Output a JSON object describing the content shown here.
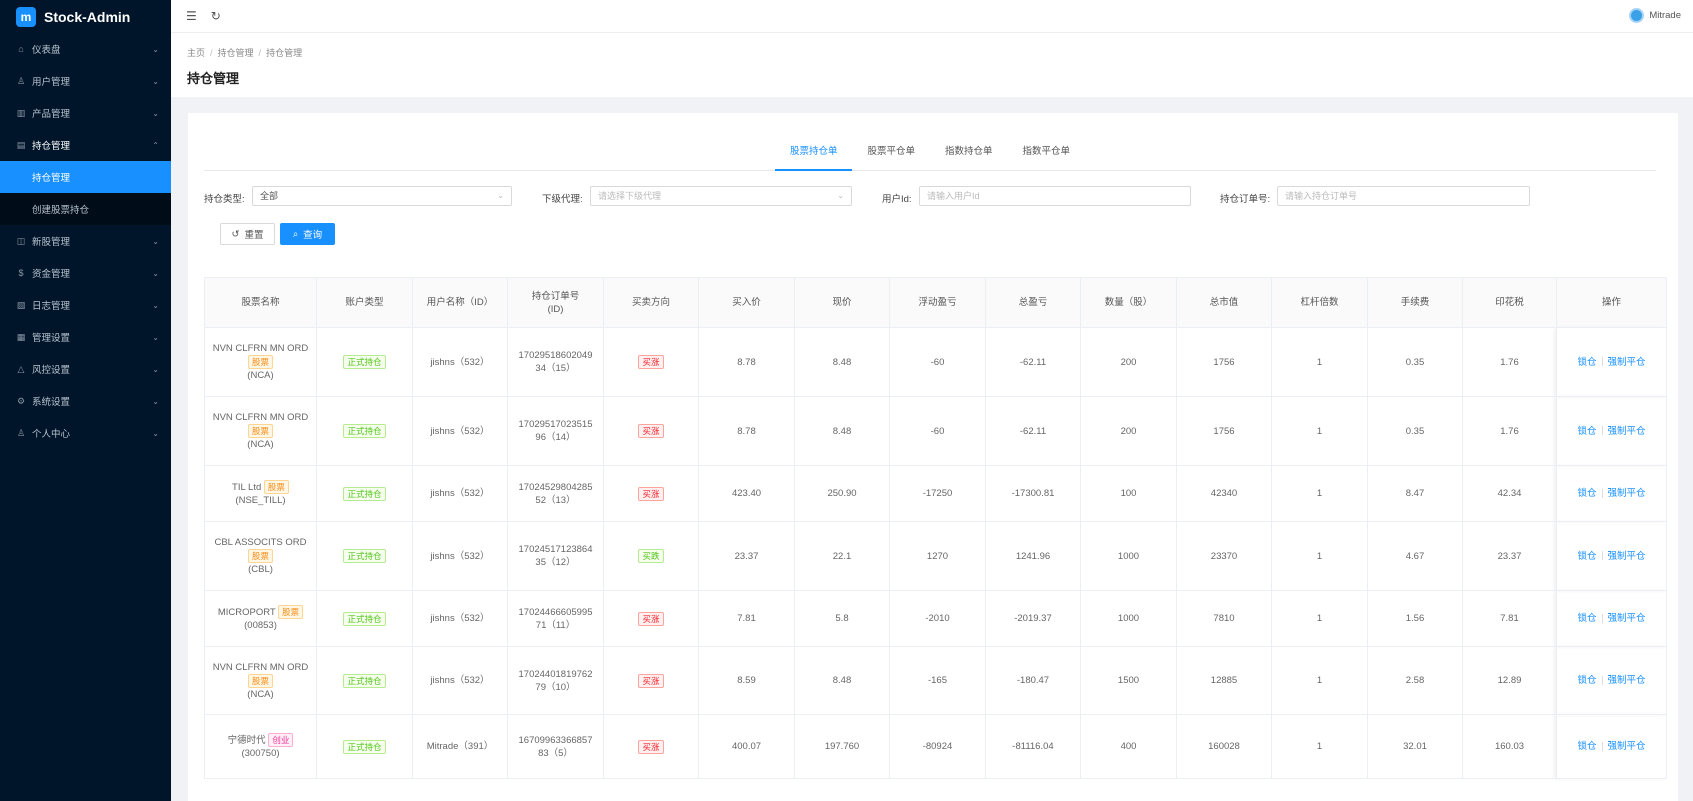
{
  "app": {
    "title": "Stock-Admin",
    "logo_glyph": "m"
  },
  "sidebar": {
    "items": [
      {
        "label": "仪表盘",
        "icon": "dashboard-icon",
        "glyph": "⌂",
        "expanded": false
      },
      {
        "label": "用户管理",
        "icon": "users-icon",
        "glyph": "♙",
        "expanded": false
      },
      {
        "label": "产品管理",
        "icon": "chart-icon",
        "glyph": "▥",
        "expanded": false
      },
      {
        "label": "持仓管理",
        "icon": "doc-icon",
        "glyph": "▤",
        "expanded": true,
        "children": [
          {
            "label": "持仓管理",
            "active": true
          },
          {
            "label": "创建股票持仓",
            "active": false
          }
        ]
      },
      {
        "label": "新股管理",
        "icon": "ipo-icon",
        "glyph": "◫",
        "expanded": false
      },
      {
        "label": "资金管理",
        "icon": "money-icon",
        "glyph": "$",
        "expanded": false
      },
      {
        "label": "日志管理",
        "icon": "log-icon",
        "glyph": "▧",
        "expanded": false
      },
      {
        "label": "管理设置",
        "icon": "grid-icon",
        "glyph": "▦",
        "expanded": false
      },
      {
        "label": "风控设置",
        "icon": "warning-icon",
        "glyph": "△",
        "expanded": false
      },
      {
        "label": "系统设置",
        "icon": "settings-icon",
        "glyph": "⚙",
        "expanded": false
      },
      {
        "label": "个人中心",
        "icon": "person-icon",
        "glyph": "♙",
        "expanded": false
      }
    ]
  },
  "topbar": {
    "menu_glyph": "☰",
    "refresh_glyph": "↻",
    "username": "Mitrade"
  },
  "breadcrumb": [
    "主页",
    "持仓管理",
    "持仓管理"
  ],
  "page_title": "持仓管理",
  "tabs": [
    {
      "label": "股票持仓单",
      "active": true
    },
    {
      "label": "股票平仓单",
      "active": false
    },
    {
      "label": "指数持仓单",
      "active": false
    },
    {
      "label": "指数平仓单",
      "active": false
    }
  ],
  "filters": {
    "type_label": "持仓类型:",
    "type_value": "全部",
    "agent_label": "下级代理:",
    "agent_placeholder": "请选择下级代理",
    "userid_label": "用户Id:",
    "userid_placeholder": "请输入用户Id",
    "order_label": "持仓订单号:",
    "order_placeholder": "请输入持仓订单号"
  },
  "buttons": {
    "reset": "重置",
    "search": "查询",
    "reset_glyph": "↺",
    "search_glyph": "⌕"
  },
  "table": {
    "columns": [
      "股票名称",
      "账户类型",
      "用户名称（ID）",
      "持仓订单号\n(ID)",
      "买卖方向",
      "买入价",
      "现价",
      "浮动盈亏",
      "总盈亏",
      "数量（股）",
      "总市值",
      "杠杆倍数",
      "手续费",
      "印花税",
      "操作"
    ],
    "rows": [
      {
        "name": "NVN CLFRN MN ORD",
        "tag": "股票",
        "tag_color": "orange",
        "code": "(NCA)",
        "account": "正式持仓",
        "user": "jishns（532）",
        "order": "17029518602049\n34（15）",
        "direction": "买涨",
        "dir_color": "red",
        "buy": "8.78",
        "now": "8.48",
        "float": "-60",
        "float_color": "green",
        "total": "-62.11",
        "total_color": "green",
        "qty": "200",
        "value": "1756",
        "lev": "1",
        "fee": "0.35",
        "tax": "1.76",
        "op1": "锁仓",
        "op2": "强制平仓"
      },
      {
        "name": "NVN CLFRN MN ORD",
        "tag": "股票",
        "tag_color": "orange",
        "code": "(NCA)",
        "account": "正式持仓",
        "user": "jishns（532）",
        "order": "17029517023515\n96（14）",
        "direction": "买涨",
        "dir_color": "red",
        "buy": "8.78",
        "now": "8.48",
        "float": "-60",
        "float_color": "green",
        "total": "-62.11",
        "total_color": "green",
        "qty": "200",
        "value": "1756",
        "lev": "1",
        "fee": "0.35",
        "tax": "1.76",
        "op1": "锁仓",
        "op2": "强制平仓"
      },
      {
        "name": "TIL Ltd",
        "tag": "股票",
        "tag_color": "orange",
        "code": "(NSE_TILL)",
        "account": "正式持仓",
        "user": "jishns（532）",
        "order": "17024529804285\n52（13）",
        "direction": "买涨",
        "dir_color": "red",
        "buy": "423.40",
        "now": "250.90",
        "float": "-17250",
        "float_color": "green",
        "total": "-17300.81",
        "total_color": "green",
        "qty": "100",
        "value": "42340",
        "lev": "1",
        "fee": "8.47",
        "tax": "42.34",
        "op1": "锁仓",
        "op2": "强制平仓"
      },
      {
        "name": "CBL ASSOCITS ORD",
        "tag": "股票",
        "tag_color": "orange",
        "code": "(CBL)",
        "account": "正式持仓",
        "user": "jishns（532）",
        "order": "17024517123864\n35（12）",
        "direction": "买跌",
        "dir_color": "green",
        "buy": "23.37",
        "now": "22.1",
        "float": "1270",
        "float_color": "red",
        "total": "1241.96",
        "total_color": "red",
        "qty": "1000",
        "value": "23370",
        "lev": "1",
        "fee": "4.67",
        "tax": "23.37",
        "op1": "锁仓",
        "op2": "强制平仓"
      },
      {
        "name": "MICROPORT",
        "tag": "股票",
        "tag_color": "orange",
        "code": "(00853)",
        "account": "正式持仓",
        "user": "jishns（532）",
        "order": "17024466605995\n71（11）",
        "direction": "买涨",
        "dir_color": "red",
        "buy": "7.81",
        "now": "5.8",
        "float": "-2010",
        "float_color": "green",
        "total": "-2019.37",
        "total_color": "green",
        "qty": "1000",
        "value": "7810",
        "lev": "1",
        "fee": "1.56",
        "tax": "7.81",
        "op1": "锁仓",
        "op2": "强制平仓"
      },
      {
        "name": "NVN CLFRN MN ORD",
        "tag": "股票",
        "tag_color": "orange",
        "code": "(NCA)",
        "account": "正式持仓",
        "user": "jishns（532）",
        "order": "17024401819762\n79（10）",
        "direction": "买涨",
        "dir_color": "red",
        "buy": "8.59",
        "now": "8.48",
        "float": "-165",
        "float_color": "green",
        "total": "-180.47",
        "total_color": "green",
        "qty": "1500",
        "value": "12885",
        "lev": "1",
        "fee": "2.58",
        "tax": "12.89",
        "op1": "锁仓",
        "op2": "强制平仓"
      },
      {
        "name": "宁德时代",
        "tag": "创业",
        "tag_color": "pink",
        "code": "(300750)",
        "account": "正式持仓",
        "user": "Mitrade（391）",
        "order": "16709963366857\n83（5）",
        "direction": "买涨",
        "dir_color": "red",
        "buy": "400.07",
        "now": "197.760",
        "float": "-80924",
        "float_color": "green",
        "total": "-81116.04",
        "total_color": "green",
        "qty": "400",
        "value": "160028",
        "lev": "1",
        "fee": "32.01",
        "tax": "160.03",
        "op1": "锁仓",
        "op2": "强制平仓"
      }
    ]
  }
}
